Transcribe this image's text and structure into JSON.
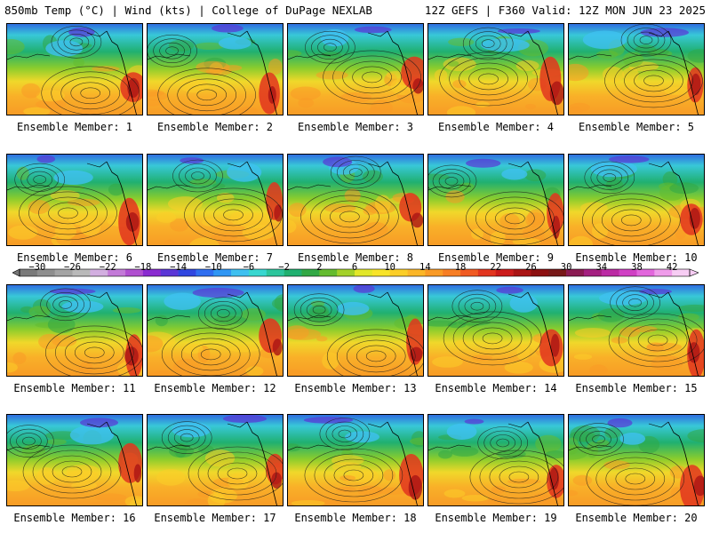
{
  "header": {
    "left": "850mb Temp (°C) | Wind (kts) | College of DuPage NEXLAB",
    "right": "12Z GEFS | F360 Valid: 12Z MON JUN 23 2025"
  },
  "panels": [
    {
      "label": "Ensemble Member: 1"
    },
    {
      "label": "Ensemble Member: 2"
    },
    {
      "label": "Ensemble Member: 3"
    },
    {
      "label": "Ensemble Member: 4"
    },
    {
      "label": "Ensemble Member: 5"
    },
    {
      "label": "Ensemble Member: 6"
    },
    {
      "label": "Ensemble Member: 7"
    },
    {
      "label": "Ensemble Member: 8"
    },
    {
      "label": "Ensemble Member: 9"
    },
    {
      "label": "Ensemble Member: 10"
    },
    {
      "label": "Ensemble Member: 11"
    },
    {
      "label": "Ensemble Member: 12"
    },
    {
      "label": "Ensemble Member: 13"
    },
    {
      "label": "Ensemble Member: 14"
    },
    {
      "label": "Ensemble Member: 15"
    },
    {
      "label": "Ensemble Member: 16"
    },
    {
      "label": "Ensemble Member: 17"
    },
    {
      "label": "Ensemble Member: 18"
    },
    {
      "label": "Ensemble Member: 19"
    },
    {
      "label": "Ensemble Member: 20"
    }
  ],
  "colorbar": {
    "ticks": [
      "−30",
      "−26",
      "−22",
      "−18",
      "−14",
      "−10",
      "−6",
      "−2",
      "2",
      "6",
      "10",
      "14",
      "18",
      "22",
      "26",
      "30",
      "34",
      "38",
      "42"
    ],
    "colors": [
      "#7a7a7a",
      "#8e8e8e",
      "#a4a4a4",
      "#b9b9b9",
      "#d2aee0",
      "#c37ad8",
      "#b04fd0",
      "#8a2bd0",
      "#5a36d6",
      "#3046e0",
      "#2f6ef0",
      "#2f96f4",
      "#3ec0f0",
      "#38d7d0",
      "#2cc59c",
      "#20b070",
      "#31a845",
      "#64bb2f",
      "#a3d12a",
      "#e2e72a",
      "#f8e42a",
      "#fbce28",
      "#fbb628",
      "#f99a26",
      "#f77e24",
      "#f05a22",
      "#e2351f",
      "#cc1b1b",
      "#aa1414",
      "#8c0f10",
      "#771818",
      "#8a1a52",
      "#a41f80",
      "#bb2aa4",
      "#d040c4",
      "#e266dc",
      "#ef9cea",
      "#f7cdf4"
    ]
  }
}
